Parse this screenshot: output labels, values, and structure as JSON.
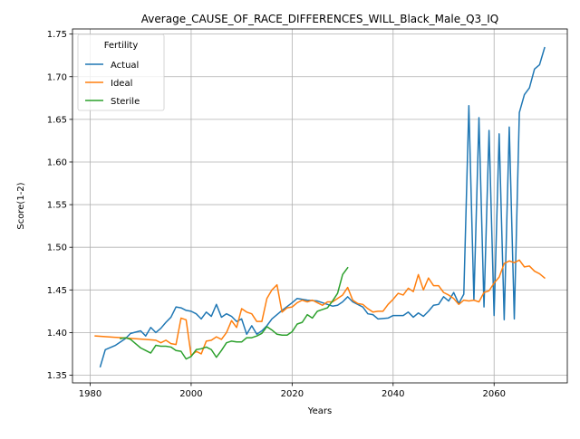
{
  "chart_data": {
    "type": "line",
    "title": "Average_CAUSE_OF_RACE_DIFFERENCES_WILL_Black_Male_Q3_IQ",
    "xlabel": "Years",
    "ylabel": "Score(1-2)",
    "xlim": [
      1976.5,
      2074.5
    ],
    "ylim": [
      1.341,
      1.756
    ],
    "x_ticks": [
      1980,
      2000,
      2020,
      2040,
      2060
    ],
    "y_ticks": [
      1.35,
      1.4,
      1.45,
      1.5,
      1.55,
      1.6,
      1.65,
      1.7,
      1.75
    ],
    "grid": true,
    "legend": {
      "title": "Fertility",
      "placement": "top-left"
    },
    "series": [
      {
        "name": "Actual",
        "color": "#1f77b4",
        "points": [
          [
            1982,
            1.36
          ],
          [
            1983,
            1.38
          ],
          [
            1985,
            1.385
          ],
          [
            1987,
            1.393
          ],
          [
            1988,
            1.399
          ],
          [
            1990,
            1.402
          ],
          [
            1991,
            1.396
          ],
          [
            1992,
            1.406
          ],
          [
            1993,
            1.4
          ],
          [
            1994,
            1.405
          ],
          [
            1995,
            1.412
          ],
          [
            1996,
            1.418
          ],
          [
            1997,
            1.43
          ],
          [
            1998,
            1.429
          ],
          [
            1999,
            1.426
          ],
          [
            2000,
            1.425
          ],
          [
            2001,
            1.422
          ],
          [
            2002,
            1.416
          ],
          [
            2003,
            1.424
          ],
          [
            2004,
            1.419
          ],
          [
            2005,
            1.433
          ],
          [
            2006,
            1.418
          ],
          [
            2007,
            1.422
          ],
          [
            2008,
            1.419
          ],
          [
            2009,
            1.413
          ],
          [
            2010,
            1.416
          ],
          [
            2011,
            1.398
          ],
          [
            2012,
            1.408
          ],
          [
            2013,
            1.398
          ],
          [
            2014,
            1.402
          ],
          [
            2015,
            1.408
          ],
          [
            2016,
            1.416
          ],
          [
            2018,
            1.426
          ],
          [
            2020,
            1.435
          ],
          [
            2021,
            1.44
          ],
          [
            2023,
            1.438
          ],
          [
            2025,
            1.437
          ],
          [
            2027,
            1.433
          ],
          [
            2028,
            1.431
          ],
          [
            2029,
            1.432
          ],
          [
            2030,
            1.436
          ],
          [
            2031,
            1.442
          ],
          [
            2032,
            1.436
          ],
          [
            2034,
            1.43
          ],
          [
            2035,
            1.422
          ],
          [
            2036,
            1.421
          ],
          [
            2037,
            1.416
          ],
          [
            2039,
            1.417
          ],
          [
            2040,
            1.42
          ],
          [
            2042,
            1.42
          ],
          [
            2043,
            1.424
          ],
          [
            2044,
            1.418
          ],
          [
            2045,
            1.423
          ],
          [
            2046,
            1.419
          ],
          [
            2047,
            1.425
          ],
          [
            2048,
            1.432
          ],
          [
            2049,
            1.433
          ],
          [
            2050,
            1.442
          ],
          [
            2051,
            1.437
          ],
          [
            2052,
            1.447
          ],
          [
            2053,
            1.434
          ],
          [
            2054,
            1.445
          ],
          [
            2055,
            1.666
          ],
          [
            2056,
            1.438
          ],
          [
            2057,
            1.652
          ],
          [
            2058,
            1.43
          ],
          [
            2059,
            1.637
          ],
          [
            2060,
            1.42
          ],
          [
            2061,
            1.633
          ],
          [
            2062,
            1.415
          ],
          [
            2063,
            1.641
          ],
          [
            2064,
            1.416
          ],
          [
            2065,
            1.658
          ],
          [
            2066,
            1.679
          ],
          [
            2067,
            1.687
          ],
          [
            2068,
            1.709
          ],
          [
            2069,
            1.714
          ],
          [
            2070,
            1.734
          ]
        ]
      },
      {
        "name": "Ideal",
        "color": "#ff7f0e",
        "points": [
          [
            1981,
            1.396
          ],
          [
            1991,
            1.392
          ],
          [
            1993,
            1.391
          ],
          [
            1994,
            1.388
          ],
          [
            1995,
            1.391
          ],
          [
            1996,
            1.387
          ],
          [
            1997,
            1.386
          ],
          [
            1998,
            1.417
          ],
          [
            1999,
            1.415
          ],
          [
            2000,
            1.373
          ],
          [
            2001,
            1.378
          ],
          [
            2002,
            1.375
          ],
          [
            2003,
            1.39
          ],
          [
            2004,
            1.391
          ],
          [
            2005,
            1.395
          ],
          [
            2006,
            1.392
          ],
          [
            2007,
            1.4
          ],
          [
            2008,
            1.414
          ],
          [
            2009,
            1.406
          ],
          [
            2010,
            1.428
          ],
          [
            2011,
            1.424
          ],
          [
            2012,
            1.422
          ],
          [
            2013,
            1.413
          ],
          [
            2014,
            1.413
          ],
          [
            2015,
            1.44
          ],
          [
            2016,
            1.45
          ],
          [
            2017,
            1.456
          ],
          [
            2018,
            1.424
          ],
          [
            2019,
            1.429
          ],
          [
            2020,
            1.43
          ],
          [
            2021,
            1.435
          ],
          [
            2022,
            1.438
          ],
          [
            2023,
            1.436
          ],
          [
            2024,
            1.438
          ],
          [
            2025,
            1.435
          ],
          [
            2026,
            1.432
          ],
          [
            2027,
            1.436
          ],
          [
            2028,
            1.436
          ],
          [
            2029,
            1.44
          ],
          [
            2030,
            1.444
          ],
          [
            2031,
            1.453
          ],
          [
            2032,
            1.438
          ],
          [
            2033,
            1.434
          ],
          [
            2034,
            1.433
          ],
          [
            2035,
            1.428
          ],
          [
            2036,
            1.424
          ],
          [
            2037,
            1.425
          ],
          [
            2038,
            1.425
          ],
          [
            2039,
            1.433
          ],
          [
            2040,
            1.439
          ],
          [
            2041,
            1.446
          ],
          [
            2042,
            1.444
          ],
          [
            2043,
            1.452
          ],
          [
            2044,
            1.448
          ],
          [
            2045,
            1.468
          ],
          [
            2046,
            1.45
          ],
          [
            2047,
            1.464
          ],
          [
            2048,
            1.455
          ],
          [
            2049,
            1.455
          ],
          [
            2050,
            1.447
          ],
          [
            2051,
            1.444
          ],
          [
            2052,
            1.44
          ],
          [
            2053,
            1.433
          ],
          [
            2054,
            1.438
          ],
          [
            2055,
            1.437
          ],
          [
            2056,
            1.438
          ],
          [
            2057,
            1.436
          ],
          [
            2058,
            1.447
          ],
          [
            2059,
            1.449
          ],
          [
            2060,
            1.458
          ],
          [
            2061,
            1.465
          ],
          [
            2062,
            1.481
          ],
          [
            2063,
            1.484
          ],
          [
            2064,
            1.482
          ],
          [
            2065,
            1.485
          ],
          [
            2066,
            1.477
          ],
          [
            2067,
            1.478
          ],
          [
            2068,
            1.472
          ],
          [
            2069,
            1.469
          ],
          [
            2070,
            1.464
          ]
        ]
      },
      {
        "name": "Sterile",
        "color": "#2ca02c",
        "points": [
          [
            1986,
            1.393
          ],
          [
            1987,
            1.394
          ],
          [
            1988,
            1.392
          ],
          [
            1989,
            1.387
          ],
          [
            1990,
            1.382
          ],
          [
            1991,
            1.379
          ],
          [
            1992,
            1.376
          ],
          [
            1993,
            1.385
          ],
          [
            1994,
            1.384
          ],
          [
            1995,
            1.384
          ],
          [
            1996,
            1.383
          ],
          [
            1997,
            1.379
          ],
          [
            1998,
            1.378
          ],
          [
            1999,
            1.369
          ],
          [
            2000,
            1.372
          ],
          [
            2001,
            1.38
          ],
          [
            2002,
            1.381
          ],
          [
            2003,
            1.383
          ],
          [
            2004,
            1.38
          ],
          [
            2005,
            1.371
          ],
          [
            2006,
            1.379
          ],
          [
            2007,
            1.388
          ],
          [
            2008,
            1.39
          ],
          [
            2009,
            1.389
          ],
          [
            2010,
            1.389
          ],
          [
            2011,
            1.394
          ],
          [
            2012,
            1.394
          ],
          [
            2013,
            1.396
          ],
          [
            2014,
            1.399
          ],
          [
            2015,
            1.407
          ],
          [
            2016,
            1.403
          ],
          [
            2017,
            1.398
          ],
          [
            2018,
            1.397
          ],
          [
            2019,
            1.397
          ],
          [
            2020,
            1.401
          ],
          [
            2021,
            1.41
          ],
          [
            2022,
            1.412
          ],
          [
            2023,
            1.421
          ],
          [
            2024,
            1.417
          ],
          [
            2025,
            1.425
          ],
          [
            2026,
            1.427
          ],
          [
            2027,
            1.429
          ],
          [
            2028,
            1.437
          ],
          [
            2029,
            1.446
          ],
          [
            2030,
            1.468
          ],
          [
            2031,
            1.476
          ]
        ]
      }
    ]
  }
}
